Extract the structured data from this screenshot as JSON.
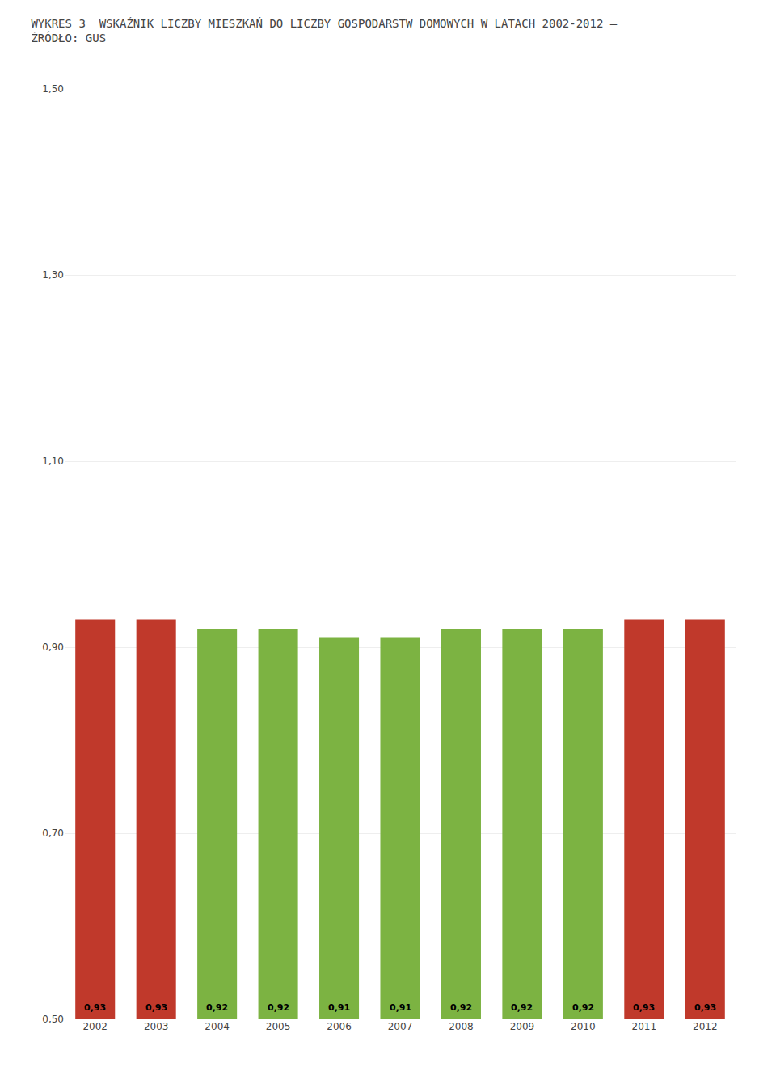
{
  "chart_data": {
    "type": "bar",
    "title": "WYKRES 3  WSKAŹNIK LICZBY MIESZKAŃ DO LICZBY GOSPODARSTW DOMOWYCH W LATACH 2002-2012 –\nŹRÓDŁO: GUS",
    "categories": [
      "2002",
      "2003",
      "2004",
      "2005",
      "2006",
      "2007",
      "2008",
      "2009",
      "2010",
      "2011",
      "2012"
    ],
    "values": [
      0.93,
      0.93,
      0.92,
      0.92,
      0.91,
      0.91,
      0.92,
      0.92,
      0.92,
      0.93,
      0.93
    ],
    "value_labels": [
      "0,93",
      "0,93",
      "0,92",
      "0,92",
      "0,91",
      "0,91",
      "0,92",
      "0,92",
      "0,92",
      "0,93",
      "0,93"
    ],
    "colors": [
      "#c0392b",
      "#c0392b",
      "#7cb342",
      "#7cb342",
      "#7cb342",
      "#7cb342",
      "#7cb342",
      "#7cb342",
      "#7cb342",
      "#c0392b",
      "#c0392b"
    ],
    "ylim": [
      0.5,
      1.5
    ],
    "yticks": [
      {
        "value": 0.5,
        "label": "0,50"
      },
      {
        "value": 0.7,
        "label": "0,70"
      },
      {
        "value": 0.9,
        "label": "0,90"
      },
      {
        "value": 1.1,
        "label": "1,10"
      },
      {
        "value": 1.3,
        "label": "1,30"
      },
      {
        "value": 1.5,
        "label": "1,50"
      }
    ],
    "grid": true,
    "data_labels": true
  }
}
